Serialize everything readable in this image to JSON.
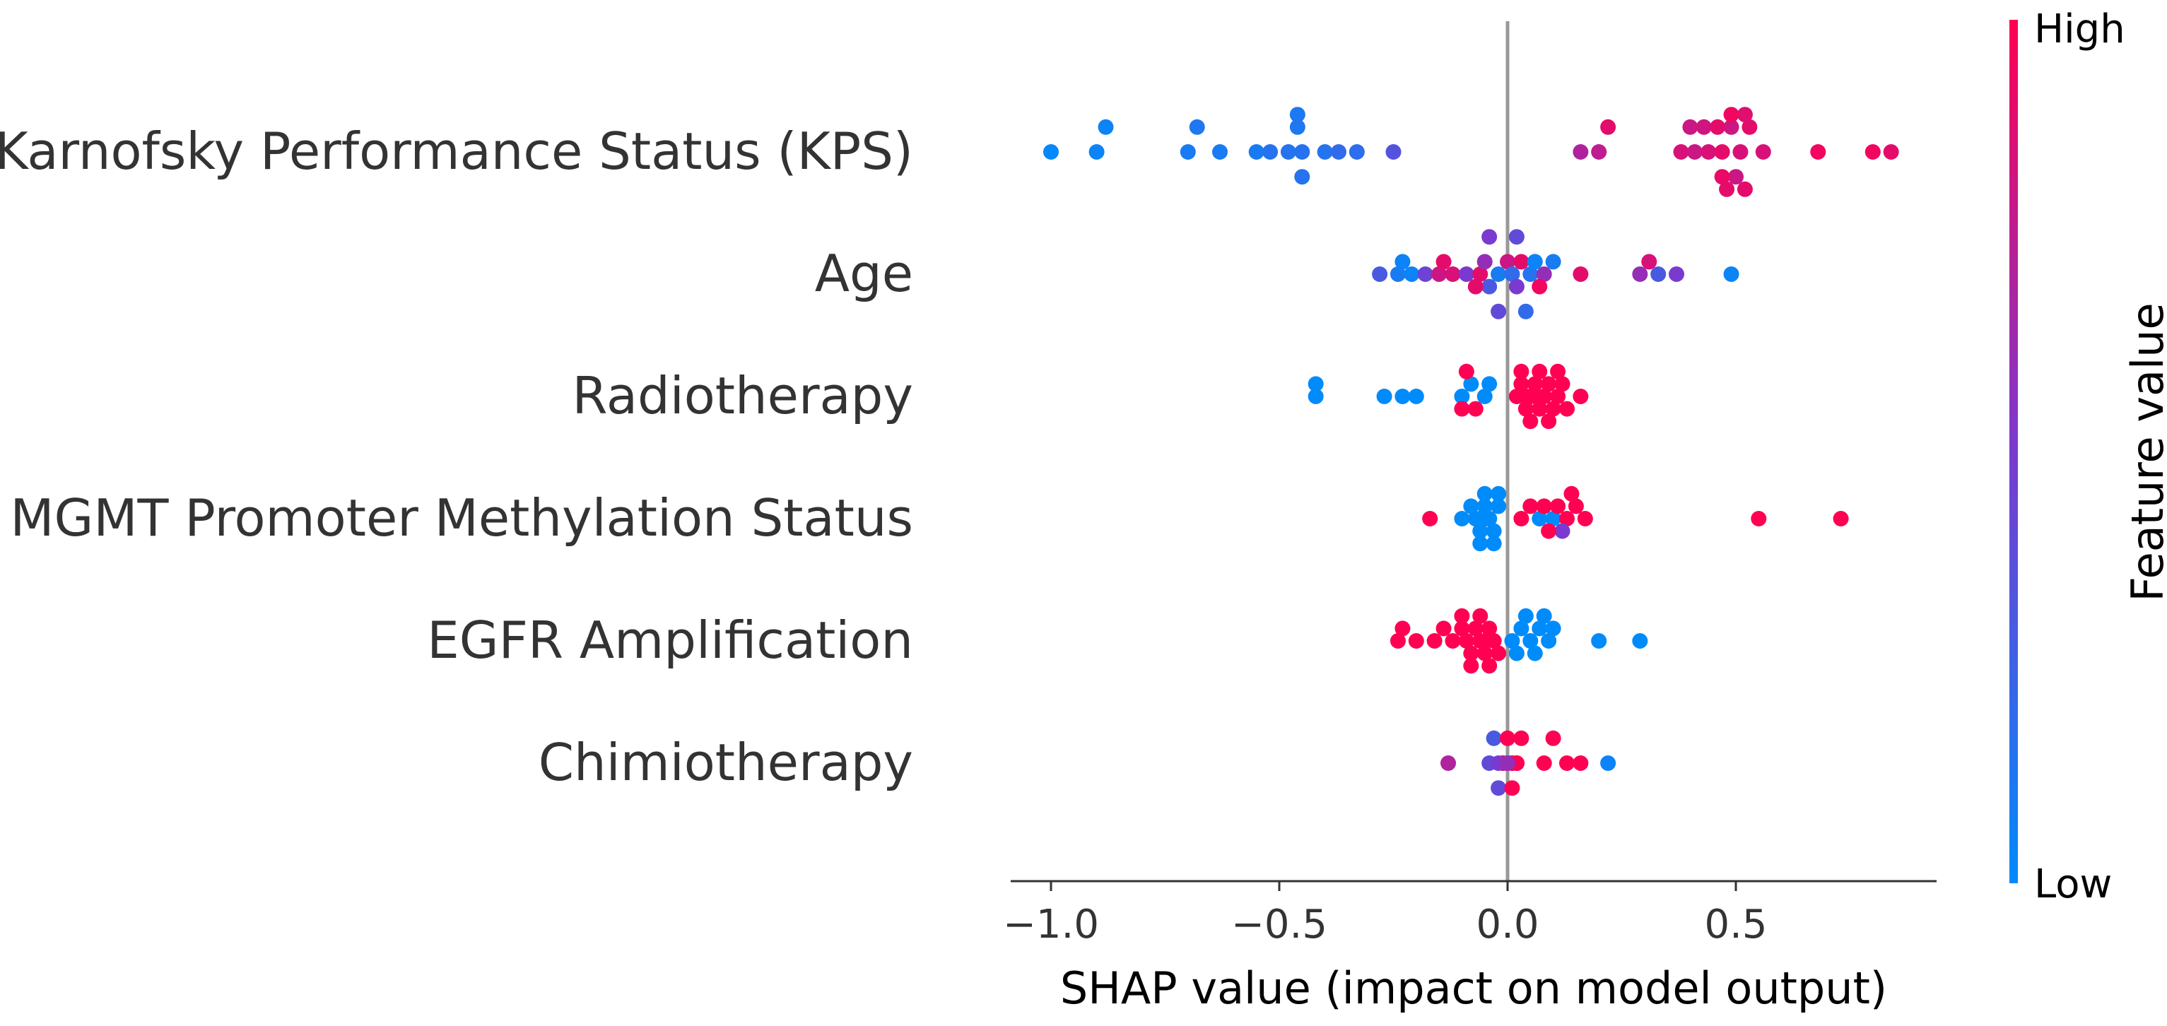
{
  "chart_data": {
    "type": "scatter",
    "subtype": "shap-beeswarm",
    "title": "",
    "xlabel": "SHAP value (impact on model output)",
    "ylabel": "",
    "xlim": [
      -1.1,
      0.95
    ],
    "xticks": [
      -1.0,
      -0.5,
      0.0,
      0.5
    ],
    "xtick_labels": [
      "−1.0",
      "−0.5",
      "0.0",
      "0.5"
    ],
    "colorbar": {
      "title": "Feature value",
      "high_label": "High",
      "low_label": "Low",
      "low_color": "#008bfb",
      "high_color": "#ff0052"
    },
    "zero_line_color": "#999999",
    "features": [
      {
        "name": "Karnofsky Performance Status (KPS)",
        "points": [
          {
            "x": -1.0,
            "v": 0.02
          },
          {
            "x": -0.9,
            "v": 0.05
          },
          {
            "x": -0.88,
            "v": 0.05
          },
          {
            "x": -0.7,
            "v": 0.1
          },
          {
            "x": -0.68,
            "v": 0.12
          },
          {
            "x": -0.63,
            "v": 0.1
          },
          {
            "x": -0.55,
            "v": 0.1
          },
          {
            "x": -0.52,
            "v": 0.15
          },
          {
            "x": -0.48,
            "v": 0.15
          },
          {
            "x": -0.46,
            "v": 0.12
          },
          {
            "x": -0.45,
            "v": 0.15
          },
          {
            "x": -0.4,
            "v": 0.15
          },
          {
            "x": -0.37,
            "v": 0.2
          },
          {
            "x": -0.33,
            "v": 0.18
          },
          {
            "x": -0.45,
            "v": 0.15
          },
          {
            "x": -0.46,
            "v": 0.12
          },
          {
            "x": -0.25,
            "v": 0.35
          },
          {
            "x": 0.16,
            "v": 0.7
          },
          {
            "x": 0.2,
            "v": 0.75
          },
          {
            "x": 0.22,
            "v": 0.9
          },
          {
            "x": 0.38,
            "v": 0.85
          },
          {
            "x": 0.41,
            "v": 0.8
          },
          {
            "x": 0.44,
            "v": 0.85
          },
          {
            "x": 0.47,
            "v": 0.9
          },
          {
            "x": 0.49,
            "v": 0.8
          },
          {
            "x": 0.51,
            "v": 0.85
          },
          {
            "x": 0.53,
            "v": 0.9
          },
          {
            "x": 0.56,
            "v": 0.85
          },
          {
            "x": 0.4,
            "v": 0.8
          },
          {
            "x": 0.43,
            "v": 0.82
          },
          {
            "x": 0.46,
            "v": 0.9
          },
          {
            "x": 0.5,
            "v": 0.8
          },
          {
            "x": 0.52,
            "v": 0.88
          },
          {
            "x": 0.47,
            "v": 0.92
          },
          {
            "x": 0.49,
            "v": 0.95
          },
          {
            "x": 0.52,
            "v": 0.9
          },
          {
            "x": 0.48,
            "v": 0.9
          },
          {
            "x": 0.68,
            "v": 0.95
          },
          {
            "x": 0.8,
            "v": 0.95
          },
          {
            "x": 0.84,
            "v": 0.9
          }
        ]
      },
      {
        "name": "Age",
        "points": [
          {
            "x": -0.28,
            "v": 0.3
          },
          {
            "x": -0.24,
            "v": 0.1
          },
          {
            "x": -0.23,
            "v": 0.05
          },
          {
            "x": -0.21,
            "v": 0.05
          },
          {
            "x": -0.18,
            "v": 0.45
          },
          {
            "x": -0.15,
            "v": 0.8
          },
          {
            "x": -0.14,
            "v": 0.9
          },
          {
            "x": -0.12,
            "v": 0.85
          },
          {
            "x": -0.09,
            "v": 0.5
          },
          {
            "x": -0.06,
            "v": 0.9
          },
          {
            "x": -0.05,
            "v": 0.6
          },
          {
            "x": -0.04,
            "v": 0.3
          },
          {
            "x": -0.02,
            "v": 0.1
          },
          {
            "x": 0.0,
            "v": 0.8
          },
          {
            "x": 0.01,
            "v": 0.2
          },
          {
            "x": 0.02,
            "v": 0.5
          },
          {
            "x": 0.03,
            "v": 0.9
          },
          {
            "x": 0.05,
            "v": 0.15
          },
          {
            "x": 0.06,
            "v": 0.05
          },
          {
            "x": 0.08,
            "v": 0.6
          },
          {
            "x": 0.1,
            "v": 0.1
          },
          {
            "x": -0.04,
            "v": 0.5
          },
          {
            "x": 0.02,
            "v": 0.4
          },
          {
            "x": -0.02,
            "v": 0.4
          },
          {
            "x": 0.07,
            "v": 0.95
          },
          {
            "x": 0.16,
            "v": 0.9
          },
          {
            "x": 0.29,
            "v": 0.6
          },
          {
            "x": 0.31,
            "v": 0.85
          },
          {
            "x": 0.33,
            "v": 0.3
          },
          {
            "x": 0.37,
            "v": 0.5
          },
          {
            "x": 0.49,
            "v": 0.05
          },
          {
            "x": -0.07,
            "v": 0.9
          },
          {
            "x": 0.04,
            "v": 0.2
          }
        ]
      },
      {
        "name": "Radiotherapy",
        "points": [
          {
            "x": -0.42,
            "v": 0.0
          },
          {
            "x": -0.42,
            "v": 0.0
          },
          {
            "x": -0.27,
            "v": 0.0
          },
          {
            "x": -0.23,
            "v": 0.0
          },
          {
            "x": -0.2,
            "v": 0.0
          },
          {
            "x": -0.1,
            "v": 0.0
          },
          {
            "x": -0.08,
            "v": 0.0
          },
          {
            "x": -0.05,
            "v": 0.0
          },
          {
            "x": -0.04,
            "v": 0.0
          },
          {
            "x": -0.1,
            "v": 1.0
          },
          {
            "x": -0.09,
            "v": 1.0
          },
          {
            "x": -0.07,
            "v": 1.0
          },
          {
            "x": 0.02,
            "v": 1.0
          },
          {
            "x": 0.03,
            "v": 1.0
          },
          {
            "x": 0.04,
            "v": 1.0
          },
          {
            "x": 0.05,
            "v": 1.0
          },
          {
            "x": 0.06,
            "v": 1.0
          },
          {
            "x": 0.07,
            "v": 1.0
          },
          {
            "x": 0.08,
            "v": 1.0
          },
          {
            "x": 0.09,
            "v": 1.0
          },
          {
            "x": 0.1,
            "v": 1.0
          },
          {
            "x": 0.11,
            "v": 1.0
          },
          {
            "x": 0.12,
            "v": 1.0
          },
          {
            "x": 0.13,
            "v": 1.0
          },
          {
            "x": 0.16,
            "v": 1.0
          },
          {
            "x": 0.03,
            "v": 1.0
          },
          {
            "x": 0.05,
            "v": 1.0
          },
          {
            "x": 0.07,
            "v": 1.0
          },
          {
            "x": 0.09,
            "v": 1.0
          },
          {
            "x": 0.11,
            "v": 1.0
          },
          {
            "x": 0.06,
            "v": 1.0
          },
          {
            "x": 0.04,
            "v": 1.0
          },
          {
            "x": 0.08,
            "v": 1.0
          }
        ]
      },
      {
        "name": "MGMT Promoter Methylation Status",
        "points": [
          {
            "x": -0.17,
            "v": 1.0
          },
          {
            "x": -0.1,
            "v": 0.0
          },
          {
            "x": -0.08,
            "v": 0.0
          },
          {
            "x": -0.07,
            "v": 0.0
          },
          {
            "x": -0.06,
            "v": 0.0
          },
          {
            "x": -0.05,
            "v": 0.0
          },
          {
            "x": -0.04,
            "v": 0.0
          },
          {
            "x": -0.03,
            "v": 0.0
          },
          {
            "x": -0.02,
            "v": 0.0
          },
          {
            "x": -0.05,
            "v": 0.0
          },
          {
            "x": -0.06,
            "v": 0.0
          },
          {
            "x": -0.04,
            "v": 0.0
          },
          {
            "x": -0.03,
            "v": 0.0
          },
          {
            "x": -0.07,
            "v": 0.0
          },
          {
            "x": -0.05,
            "v": 0.0
          },
          {
            "x": -0.04,
            "v": 0.0
          },
          {
            "x": -0.02,
            "v": 0.0
          },
          {
            "x": -0.06,
            "v": 0.0
          },
          {
            "x": 0.03,
            "v": 1.0
          },
          {
            "x": 0.05,
            "v": 1.0
          },
          {
            "x": 0.07,
            "v": 0.0
          },
          {
            "x": 0.08,
            "v": 1.0
          },
          {
            "x": 0.1,
            "v": 0.0
          },
          {
            "x": 0.11,
            "v": 1.0
          },
          {
            "x": 0.13,
            "v": 1.0
          },
          {
            "x": 0.15,
            "v": 1.0
          },
          {
            "x": 0.17,
            "v": 1.0
          },
          {
            "x": 0.12,
            "v": 0.5
          },
          {
            "x": 0.09,
            "v": 1.0
          },
          {
            "x": 0.14,
            "v": 1.0
          },
          {
            "x": 0.55,
            "v": 1.0
          },
          {
            "x": 0.73,
            "v": 1.0
          }
        ]
      },
      {
        "name": "EGFR Amplification",
        "points": [
          {
            "x": -0.24,
            "v": 1.0
          },
          {
            "x": -0.23,
            "v": 1.0
          },
          {
            "x": -0.2,
            "v": 1.0
          },
          {
            "x": -0.16,
            "v": 1.0
          },
          {
            "x": -0.14,
            "v": 1.0
          },
          {
            "x": -0.12,
            "v": 1.0
          },
          {
            "x": -0.1,
            "v": 1.0
          },
          {
            "x": -0.09,
            "v": 1.0
          },
          {
            "x": -0.08,
            "v": 1.0
          },
          {
            "x": -0.07,
            "v": 1.0
          },
          {
            "x": -0.06,
            "v": 1.0
          },
          {
            "x": -0.05,
            "v": 1.0
          },
          {
            "x": -0.04,
            "v": 1.0
          },
          {
            "x": -0.03,
            "v": 1.0
          },
          {
            "x": -0.02,
            "v": 1.0
          },
          {
            "x": -0.1,
            "v": 1.0
          },
          {
            "x": -0.08,
            "v": 1.0
          },
          {
            "x": -0.06,
            "v": 1.0
          },
          {
            "x": -0.04,
            "v": 1.0
          },
          {
            "x": -0.05,
            "v": 1.0
          },
          {
            "x": 0.01,
            "v": 0.0
          },
          {
            "x": 0.03,
            "v": 0.0
          },
          {
            "x": 0.05,
            "v": 0.0
          },
          {
            "x": 0.07,
            "v": 0.0
          },
          {
            "x": 0.09,
            "v": 0.0
          },
          {
            "x": 0.1,
            "v": 0.0
          },
          {
            "x": 0.02,
            "v": 0.0
          },
          {
            "x": 0.04,
            "v": 0.0
          },
          {
            "x": 0.06,
            "v": 0.0
          },
          {
            "x": 0.08,
            "v": 0.0
          },
          {
            "x": 0.2,
            "v": 0.0
          },
          {
            "x": 0.29,
            "v": 0.0
          }
        ]
      },
      {
        "name": "Chimiotherapy",
        "points": [
          {
            "x": -0.13,
            "v": 0.7
          },
          {
            "x": -0.04,
            "v": 0.4
          },
          {
            "x": -0.03,
            "v": 0.3
          },
          {
            "x": -0.02,
            "v": 0.4
          },
          {
            "x": -0.01,
            "v": 0.5
          },
          {
            "x": 0.0,
            "v": 1.0
          },
          {
            "x": 0.0,
            "v": 1.0
          },
          {
            "x": 0.01,
            "v": 1.0
          },
          {
            "x": 0.01,
            "v": 1.0
          },
          {
            "x": 0.02,
            "v": 1.0
          },
          {
            "x": 0.02,
            "v": 1.0
          },
          {
            "x": 0.0,
            "v": 1.0
          },
          {
            "x": 0.01,
            "v": 1.0
          },
          {
            "x": -0.01,
            "v": 1.0
          },
          {
            "x": 0.03,
            "v": 1.0
          },
          {
            "x": 0.0,
            "v": 1.0
          },
          {
            "x": 0.01,
            "v": 1.0
          },
          {
            "x": -0.02,
            "v": 0.5
          },
          {
            "x": 0.02,
            "v": 1.0
          },
          {
            "x": 0.0,
            "v": 0.6
          },
          {
            "x": 0.08,
            "v": 1.0
          },
          {
            "x": 0.1,
            "v": 1.0
          },
          {
            "x": 0.13,
            "v": 1.0
          },
          {
            "x": 0.16,
            "v": 1.0
          },
          {
            "x": 0.22,
            "v": 0.05
          }
        ]
      }
    ]
  }
}
